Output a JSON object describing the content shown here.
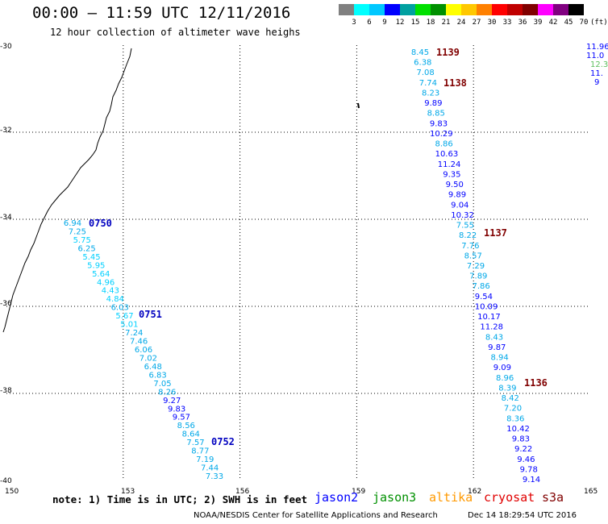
{
  "header": {
    "title": "00:00 – 11:59 UTC 12/11/2016",
    "subtitle": "12 hour collection of altimeter wave heighs"
  },
  "legend": {
    "colors": [
      "#808080",
      "#00ffff",
      "#00c8ff",
      "#0000ff",
      "#00a0a0",
      "#00e000",
      "#009000",
      "#ffff00",
      "#ffc800",
      "#ff8000",
      "#ff0000",
      "#c00000",
      "#800000",
      "#ff00ff",
      "#800080",
      "#000000"
    ],
    "labels": [
      "3",
      "6",
      "9",
      "12",
      "15",
      "18",
      "21",
      "24",
      "27",
      "30",
      "33",
      "36",
      "39",
      "42",
      "45",
      "70"
    ],
    "unit": "(ft)"
  },
  "axes": {
    "lon_labels": [
      "150",
      "153",
      "156",
      "159",
      "162",
      "165"
    ],
    "lat_labels": [
      "-30",
      "-32",
      "-34",
      "-36",
      "-38",
      "-40"
    ]
  },
  "chart_data": {
    "type": "scatter",
    "lon_range": [
      150,
      165
    ],
    "lat_range": [
      -40,
      -30
    ],
    "tracks": [
      {
        "pass": "0750",
        "values": [
          "6.94",
          "7.25",
          "5.75",
          "6.25",
          "5.45",
          "5.95",
          "5.64",
          "4.96",
          "4.43",
          "4.84",
          "6.03",
          "5.67",
          "5.01",
          "7.24",
          "7.46",
          "6.06",
          "7.02",
          "6.48",
          "6.83",
          "7.05",
          "8.26",
          "9.27",
          "9.83",
          "9.57",
          "8.56",
          "8.64",
          "7.57",
          "8.77",
          "7.19",
          "7.44",
          "7.33"
        ]
      },
      {
        "pass": "1139",
        "values": [
          "8.45",
          "6.38",
          "7.08",
          "7.74",
          "8.23",
          "9.89",
          "8.85",
          "9.83",
          "10.29",
          "8.86",
          "10.63",
          "11.24",
          "9.35",
          "9.50",
          "9.89",
          "9.04",
          "10.32",
          "7.55",
          "8.22",
          "7.76",
          "8.57",
          "7.29",
          "7.89",
          "7.86",
          "9.54",
          "10.09",
          "10.17",
          "11.28",
          "8.43",
          "9.87",
          "8.94",
          "9.09",
          "8.96",
          "8.39",
          "8.42",
          "7.20",
          "8.36",
          "10.42",
          "9.83",
          "9.22",
          "9.46",
          "9.78",
          "9.14"
        ]
      },
      {
        "pass": "edge",
        "values": [
          "11.96",
          "11.0",
          "12.3",
          "11.",
          "9"
        ]
      }
    ],
    "pass_labels": [
      {
        "text": "0750",
        "color": "#0000c0"
      },
      {
        "text": "0751",
        "color": "#0000c0"
      },
      {
        "text": "0752",
        "color": "#0000c0"
      },
      {
        "text": "1139",
        "color": "#800000"
      },
      {
        "text": "1138",
        "color": "#800000"
      },
      {
        "text": "1137",
        "color": "#800000"
      },
      {
        "text": "1136",
        "color": "#800000"
      }
    ]
  },
  "footer": {
    "note": "note: 1) Time is in UTC; 2) SWH is in feet",
    "satellites": [
      {
        "name": "jason2",
        "color": "#0000ff"
      },
      {
        "name": "jason3",
        "color": "#009000"
      },
      {
        "name": "altika",
        "color": "#ff9900"
      },
      {
        "name": "cryosat",
        "color": "#e00000"
      },
      {
        "name": "s3a",
        "color": "#800000"
      }
    ],
    "credit": "NOAA/NESDIS Center for Satellite Applications and Research",
    "timestamp": "Dec 14 18:29:54 UTC 2016"
  }
}
